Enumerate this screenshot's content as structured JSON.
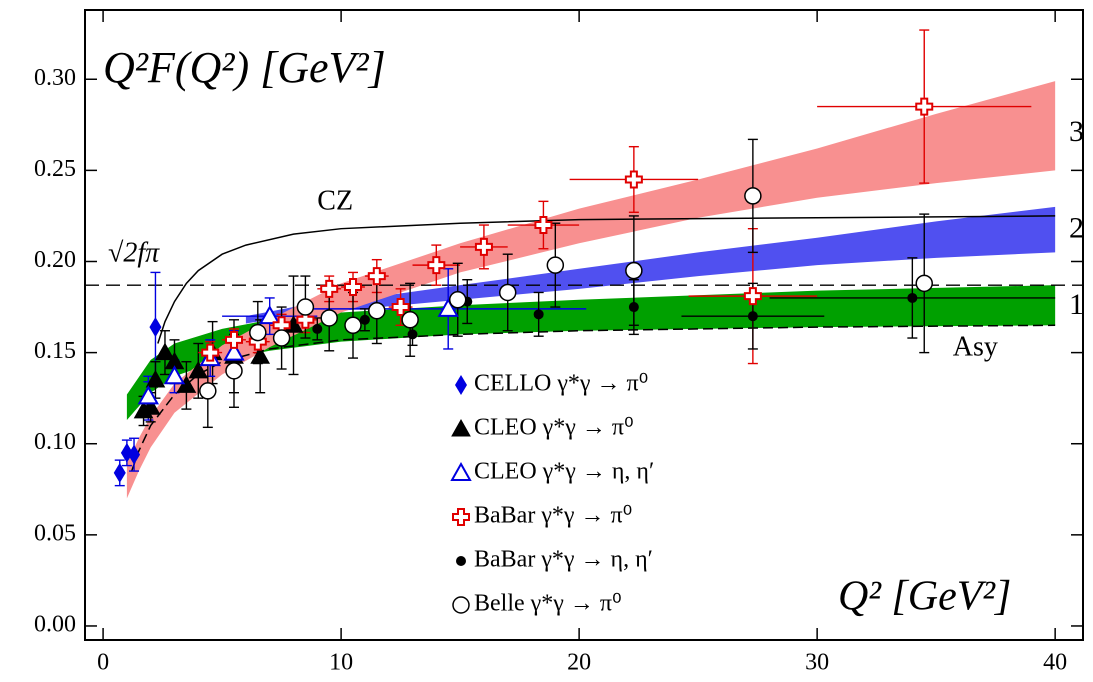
{
  "chart_data": {
    "type": "scatter",
    "title": "Q²F(Q²) [GeV²]",
    "x_label": "Q² [GeV²]",
    "xlim": [
      -0.76,
      41.17
    ],
    "ylim": [
      -0.0077,
      0.338
    ],
    "xticks": [
      0,
      10,
      20,
      30,
      40
    ],
    "yticks": [
      {
        "value": 0,
        "label": "0.00"
      },
      0.05,
      {
        "value": 0.1,
        "label": "0.10"
      },
      0.15,
      {
        "value": 0.2,
        "label": "0.20"
      },
      0.25,
      {
        "value": 0.3,
        "label": "0.30"
      }
    ],
    "bands": [
      {
        "name": "1",
        "color": "#00a000",
        "x": [
          1,
          2,
          3,
          5,
          7,
          10,
          15,
          20,
          30,
          40
        ],
        "lower": [
          0.113,
          0.128,
          0.137,
          0.146,
          0.151,
          0.156,
          0.16,
          0.162,
          0.164,
          0.165
        ],
        "upper": [
          0.127,
          0.146,
          0.155,
          0.163,
          0.168,
          0.172,
          0.176,
          0.179,
          0.184,
          0.187
        ],
        "label_y": 0.175
      },
      {
        "name": "2",
        "color": "#5050f0",
        "x": [
          6,
          8,
          10,
          15,
          20,
          25,
          30,
          35,
          40
        ],
        "lower": [
          0.166,
          0.17,
          0.173,
          0.179,
          0.185,
          0.192,
          0.198,
          0.202,
          0.205
        ],
        "upper": [
          0.17,
          0.175,
          0.178,
          0.187,
          0.196,
          0.205,
          0.213,
          0.222,
          0.23
        ],
        "label_y": 0.217
      },
      {
        "name": "3",
        "color": "#f89090",
        "x": [
          1,
          1.5,
          2,
          3,
          5,
          7,
          10,
          15,
          20,
          25,
          30,
          35,
          40
        ],
        "lower": [
          0.07,
          0.085,
          0.098,
          0.117,
          0.138,
          0.153,
          0.172,
          0.194,
          0.21,
          0.224,
          0.235,
          0.243,
          0.25
        ],
        "upper": [
          0.089,
          0.103,
          0.115,
          0.133,
          0.154,
          0.168,
          0.188,
          0.21,
          0.229,
          0.245,
          0.262,
          0.281,
          0.299
        ],
        "label_y": 0.27
      }
    ],
    "curves": [
      {
        "name": "CZ",
        "color": "#000000",
        "dash": false,
        "x": [
          2.3,
          2.6,
          3,
          3.5,
          4,
          5,
          6,
          8,
          10,
          15,
          20,
          30,
          40
        ],
        "values": [
          0.155,
          0.167,
          0.178,
          0.188,
          0.195,
          0.204,
          0.209,
          0.215,
          0.218,
          0.221,
          0.223,
          0.224,
          0.225
        ],
        "label_x": 9,
        "label_y": 0.232
      },
      {
        "name": "Asy",
        "color": "#000000",
        "dash": true,
        "x": [
          1.2,
          1.5,
          2,
          3,
          4,
          5,
          7,
          10,
          15,
          20,
          30,
          40
        ],
        "values": [
          0.085,
          0.096,
          0.11,
          0.127,
          0.138,
          0.145,
          0.152,
          0.157,
          0.16,
          0.162,
          0.164,
          0.165
        ],
        "label_x": 35.7,
        "label_y": 0.152
      }
    ],
    "hline": {
      "label": "√2fπ",
      "value": 0.187
    },
    "series": [
      {
        "name": "CELLO γ*γ → π⁰",
        "color": "#0000e0",
        "marker": "diamond",
        "x": [
          0.7,
          1.0,
          1.3,
          1.9,
          2.2
        ],
        "values": [
          0.084,
          0.095,
          0.094,
          0.125,
          0.164
        ],
        "yerr": [
          0.007,
          0.007,
          0.009,
          0.012,
          0.03
        ]
      },
      {
        "name": "CLEO γ*γ → π⁰",
        "color": "#000000",
        "marker": "triangle",
        "x": [
          1.7,
          2.0,
          2.2,
          2.6,
          3.0,
          3.5,
          4.0,
          4.6,
          5.5,
          6.6,
          8.0
        ],
        "values": [
          0.118,
          0.12,
          0.135,
          0.15,
          0.145,
          0.132,
          0.14,
          0.15,
          0.148,
          0.148,
          0.165
        ],
        "yerr": [
          0.008,
          0.008,
          0.01,
          0.012,
          0.012,
          0.013,
          0.015,
          0.017,
          0.02,
          0.02,
          0.027
        ]
      },
      {
        "name": "CLEO γ*γ → η, η′",
        "color": "#0000e0",
        "marker": "triangle-open",
        "x": [
          1.9,
          3.0,
          4.5,
          5.5,
          7.0,
          14.5
        ],
        "values": [
          0.126,
          0.137,
          0.147,
          0.15,
          0.17,
          0.174
        ],
        "yerr": [
          0.008,
          0.009,
          0.01,
          0.012,
          0.01,
          0.022
        ],
        "xerr": [
          null,
          null,
          null,
          null,
          2,
          5.8
        ]
      },
      {
        "name": "BaBar γ*γ → π⁰",
        "color": "#e00000",
        "marker": "cross-open",
        "x": [
          4.5,
          5.5,
          6.5,
          7.5,
          8.5,
          9.5,
          10.5,
          11.5,
          12.5,
          14,
          16,
          18.5,
          22.3,
          27.3,
          34.5
        ],
        "values": [
          0.15,
          0.157,
          0.156,
          0.165,
          0.168,
          0.185,
          0.186,
          0.192,
          0.175,
          0.198,
          0.208,
          0.22,
          0.245,
          0.181,
          0.285
        ],
        "yerr": [
          0.006,
          0.006,
          0.006,
          0.006,
          0.007,
          0.007,
          0.008,
          0.009,
          0.01,
          0.011,
          0.012,
          0.013,
          0.018,
          0.037,
          0.042
        ],
        "xerr": [
          0.5,
          0.5,
          0.5,
          0.5,
          0.5,
          0.5,
          0.5,
          0.5,
          0.5,
          1,
          1,
          1.5,
          2.7,
          2.7,
          4.5
        ]
      },
      {
        "name": "BaBar γ*γ → η, η′",
        "color": "#000000",
        "marker": "dot",
        "x": [
          9.0,
          11.0,
          13.0,
          15.3,
          18.3,
          22.3,
          27.3,
          34.0
        ],
        "values": [
          0.163,
          0.168,
          0.16,
          0.178,
          0.171,
          0.175,
          0.17,
          0.18
        ],
        "yerr": [
          0.006,
          0.006,
          0.006,
          0.012,
          0.012,
          0.015,
          0.018,
          0.022
        ],
        "xerr": [
          null,
          null,
          null,
          null,
          null,
          null,
          3,
          6
        ]
      },
      {
        "name": "Belle γ*γ → π⁰",
        "color": "#000000",
        "marker": "circle-open",
        "x": [
          4.4,
          5.5,
          6.5,
          7.5,
          8.5,
          9.5,
          10.5,
          11.5,
          12.9,
          14.9,
          17.0,
          19.0,
          22.3,
          27.3,
          34.5
        ],
        "values": [
          0.129,
          0.14,
          0.161,
          0.158,
          0.175,
          0.169,
          0.165,
          0.173,
          0.168,
          0.179,
          0.183,
          0.198,
          0.195,
          0.236,
          0.188
        ],
        "yerr": [
          0.02,
          0.02,
          0.017,
          0.017,
          0.017,
          0.018,
          0.018,
          0.018,
          0.02,
          0.02,
          0.021,
          0.023,
          0.03,
          0.031,
          0.038
        ]
      }
    ]
  }
}
